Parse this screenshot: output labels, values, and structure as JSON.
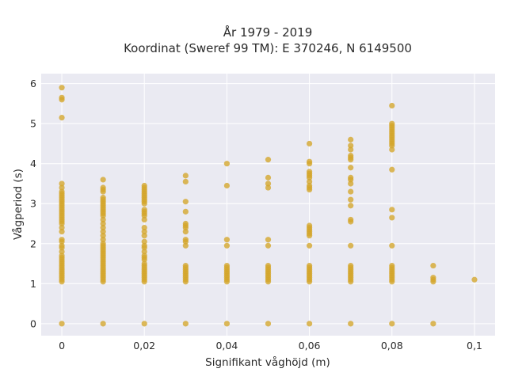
{
  "chart_data": {
    "type": "scatter",
    "title": "År 1979 - 2019",
    "subtitle": "Koordinat (Sweref 99 TM): E 370246, N 6149500",
    "xlabel": "Signifikant våghöjd (m)",
    "ylabel": "Vågperiod (s)",
    "xlim": [
      -0.005,
      0.105
    ],
    "ylim": [
      -0.3,
      6.25
    ],
    "x_ticks": [
      0,
      0.02,
      0.04,
      0.06,
      0.08,
      0.1
    ],
    "x_tick_labels": [
      "0",
      "0,02",
      "0,04",
      "0,06",
      "0,08",
      "0,1"
    ],
    "y_ticks": [
      0,
      1,
      2,
      3,
      4,
      5,
      6
    ],
    "y_tick_labels": [
      "0",
      "1",
      "2",
      "3",
      "4",
      "5",
      "6"
    ],
    "grid": true,
    "marker_color": "#D4A52A",
    "plot_background": "#EAEAF2",
    "series": [
      {
        "points": [
          {
            "x": 0,
            "y": [
              0,
              1.05,
              1.1,
              1.15,
              1.2,
              1.25,
              1.3,
              1.35,
              1.4,
              1.45,
              1.5,
              1.55,
              1.6,
              1.65,
              1.7,
              1.8,
              1.9,
              1.95,
              2.05,
              2.1,
              2.3,
              2.4,
              2.5,
              2.55,
              2.6,
              2.65,
              2.7,
              2.75,
              2.8,
              2.85,
              2.9,
              2.95,
              3.0,
              3.05,
              3.1,
              3.15,
              3.2,
              3.25,
              3.3,
              3.4,
              3.5,
              5.15,
              5.6,
              5.65,
              5.9
            ]
          },
          {
            "x": 0.01,
            "y": [
              0,
              1.05,
              1.1,
              1.15,
              1.2,
              1.25,
              1.3,
              1.35,
              1.4,
              1.45,
              1.5,
              1.55,
              1.6,
              1.65,
              1.7,
              1.75,
              1.8,
              1.85,
              1.9,
              1.95,
              2.0,
              2.1,
              2.2,
              2.3,
              2.4,
              2.5,
              2.6,
              2.7,
              2.75,
              2.8,
              2.85,
              2.9,
              2.95,
              3.0,
              3.05,
              3.1,
              3.15,
              3.3,
              3.35,
              3.4,
              3.6
            ]
          },
          {
            "x": 0.02,
            "y": [
              0,
              1.05,
              1.1,
              1.15,
              1.2,
              1.25,
              1.3,
              1.35,
              1.4,
              1.45,
              1.5,
              1.6,
              1.65,
              1.7,
              1.8,
              1.9,
              1.95,
              2.05,
              2.2,
              2.3,
              2.4,
              2.6,
              2.7,
              2.75,
              2.8,
              2.85,
              3.0,
              3.05,
              3.1,
              3.15,
              3.2,
              3.25,
              3.3,
              3.35,
              3.4,
              3.45
            ]
          },
          {
            "x": 0.03,
            "y": [
              0,
              1.05,
              1.1,
              1.15,
              1.2,
              1.25,
              1.3,
              1.35,
              1.4,
              1.45,
              1.95,
              2.05,
              2.1,
              2.3,
              2.4,
              2.45,
              2.5,
              2.8,
              3.05,
              3.55,
              3.7
            ]
          },
          {
            "x": 0.04,
            "y": [
              0,
              1.05,
              1.1,
              1.15,
              1.2,
              1.25,
              1.3,
              1.35,
              1.4,
              1.45,
              1.95,
              2.1,
              3.45,
              4.0
            ]
          },
          {
            "x": 0.05,
            "y": [
              0,
              1.05,
              1.1,
              1.15,
              1.2,
              1.25,
              1.3,
              1.35,
              1.4,
              1.45,
              1.95,
              2.1,
              3.4,
              3.5,
              3.65,
              4.1
            ]
          },
          {
            "x": 0.06,
            "y": [
              0,
              1.05,
              1.1,
              1.15,
              1.2,
              1.25,
              1.3,
              1.35,
              1.4,
              1.45,
              1.95,
              2.2,
              2.25,
              2.3,
              2.35,
              2.4,
              2.45,
              3.35,
              3.4,
              3.45,
              3.55,
              3.65,
              3.7,
              3.75,
              3.8,
              4.0,
              4.05,
              4.5
            ]
          },
          {
            "x": 0.07,
            "y": [
              0,
              1.05,
              1.1,
              1.15,
              1.2,
              1.25,
              1.3,
              1.35,
              1.4,
              1.45,
              1.95,
              2.55,
              2.6,
              2.95,
              3.1,
              3.3,
              3.5,
              3.6,
              3.65,
              3.9,
              4.1,
              4.15,
              4.2,
              4.35,
              4.45,
              4.6
            ]
          },
          {
            "x": 0.08,
            "y": [
              0,
              1.05,
              1.1,
              1.15,
              1.2,
              1.25,
              1.3,
              1.35,
              1.4,
              1.45,
              1.95,
              2.65,
              2.85,
              3.85,
              4.35,
              4.45,
              4.5,
              4.55,
              4.6,
              4.65,
              4.7,
              4.75,
              4.8,
              4.85,
              4.9,
              4.95,
              5.0,
              5.45
            ]
          },
          {
            "x": 0.09,
            "y": [
              0,
              1.05,
              1.1,
              1.15,
              1.45
            ]
          },
          {
            "x": 0.1,
            "y": [
              1.1
            ]
          }
        ]
      }
    ]
  }
}
